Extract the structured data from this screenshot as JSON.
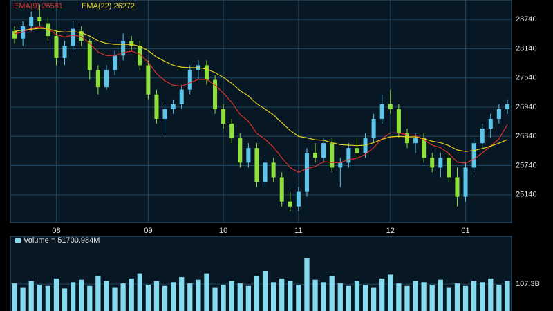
{
  "chart_data": [
    {
      "type": "candlestick",
      "color_up": "#5cc6ea",
      "color_down": "#8fe03c",
      "ylim": [
        24570,
        29140
      ],
      "yticks": [
        25140,
        25740,
        26340,
        26940,
        27540,
        28140,
        28740
      ],
      "xlim": [
        -0.5,
        59.5
      ],
      "xticks": [
        {
          "value": 5,
          "label": "08"
        },
        {
          "value": 16,
          "label": "09"
        },
        {
          "value": 25,
          "label": "10"
        },
        {
          "value": 34,
          "label": "11"
        },
        {
          "value": 45,
          "label": "12"
        },
        {
          "value": 54,
          "label": "01"
        }
      ],
      "grid": true,
      "candles": [
        [
          28500,
          28600,
          28250,
          28350
        ],
        [
          28350,
          28700,
          28200,
          28600
        ],
        [
          28600,
          28900,
          28500,
          28800
        ],
        [
          28800,
          29050,
          28600,
          28700
        ],
        [
          28650,
          28800,
          28300,
          28400
        ],
        [
          28400,
          28500,
          27800,
          27950
        ],
        [
          27950,
          28300,
          27800,
          28200
        ],
        [
          28200,
          28700,
          28100,
          28550
        ],
        [
          28500,
          28600,
          28200,
          28300
        ],
        [
          28300,
          28350,
          27500,
          27700
        ],
        [
          27700,
          27800,
          27200,
          27350
        ],
        [
          27350,
          27800,
          27300,
          27700
        ],
        [
          27700,
          28100,
          27600,
          28000
        ],
        [
          28000,
          28450,
          27900,
          28300
        ],
        [
          28300,
          28400,
          28100,
          28200
        ],
        [
          28200,
          28300,
          27700,
          27800
        ],
        [
          27800,
          27900,
          27100,
          27200
        ],
        [
          27200,
          27300,
          26600,
          26700
        ],
        [
          26700,
          27000,
          26400,
          26900
        ],
        [
          26900,
          27100,
          26800,
          27000
        ],
        [
          27000,
          27400,
          26900,
          27300
        ],
        [
          27300,
          27800,
          27200,
          27700
        ],
        [
          27700,
          27900,
          27500,
          27800
        ],
        [
          27800,
          27900,
          27400,
          27500
        ],
        [
          27500,
          27600,
          26800,
          26900
        ],
        [
          26900,
          27000,
          26500,
          26600
        ],
        [
          26600,
          26700,
          26200,
          26300
        ],
        [
          26300,
          26400,
          25700,
          25800
        ],
        [
          25800,
          26200,
          25700,
          26100
        ],
        [
          26100,
          26200,
          25300,
          25400
        ],
        [
          25400,
          25900,
          25300,
          25800
        ],
        [
          25800,
          25900,
          25400,
          25500
        ],
        [
          25500,
          25600,
          24900,
          25000
        ],
        [
          25000,
          25200,
          24800,
          24900
        ],
        [
          24900,
          25300,
          24800,
          25200
        ],
        [
          25200,
          26100,
          25100,
          26000
        ],
        [
          26000,
          26200,
          25800,
          25900
        ],
        [
          25900,
          26300,
          25800,
          26200
        ],
        [
          26200,
          26300,
          25600,
          25700
        ],
        [
          25700,
          25900,
          25300,
          25800
        ],
        [
          25800,
          26200,
          25700,
          26100
        ],
        [
          26100,
          26300,
          25900,
          26000
        ],
        [
          26000,
          26400,
          25900,
          26300
        ],
        [
          26300,
          26800,
          26200,
          26700
        ],
        [
          26700,
          27200,
          26600,
          27000
        ],
        [
          27000,
          27300,
          26800,
          26900
        ],
        [
          26900,
          27000,
          26300,
          26400
        ],
        [
          26400,
          26500,
          26100,
          26200
        ],
        [
          26200,
          26400,
          26000,
          26300
        ],
        [
          26300,
          26400,
          25800,
          25900
        ],
        [
          25900,
          26000,
          25600,
          25700
        ],
        [
          25700,
          26000,
          25500,
          25900
        ],
        [
          25900,
          26000,
          25400,
          25500
        ],
        [
          25500,
          25700,
          24900,
          25100
        ],
        [
          25100,
          25800,
          25000,
          25700
        ],
        [
          25700,
          26300,
          25600,
          26200
        ],
        [
          26200,
          26600,
          26100,
          26500
        ],
        [
          26500,
          26800,
          26300,
          26700
        ],
        [
          26700,
          27000,
          26600,
          26900
        ],
        [
          26900,
          27100,
          26800,
          27000
        ]
      ],
      "lines": [
        {
          "name": "EMA(9) 26581",
          "color": "#e0302a",
          "values": [
            28450,
            28480,
            28560,
            28590,
            28550,
            28430,
            28380,
            28420,
            28390,
            28250,
            28070,
            28000,
            28000,
            28060,
            28090,
            28030,
            27860,
            27630,
            27480,
            27390,
            27370,
            27440,
            27510,
            27510,
            27390,
            27230,
            27040,
            26790,
            26650,
            26400,
            26280,
            26120,
            25900,
            25700,
            25600,
            25680,
            25720,
            25820,
            25800,
            25800,
            25860,
            25890,
            25970,
            26110,
            26290,
            26410,
            26410,
            26370,
            26360,
            26270,
            26160,
            26110,
            25990,
            25810,
            25790,
            25870,
            26000,
            26140,
            26290,
            26581
          ]
        },
        {
          "name": "EMA(22) 26272",
          "color": "#e8d020",
          "values": [
            28500,
            28520,
            28540,
            28560,
            28550,
            28500,
            28480,
            28490,
            28470,
            28400,
            28300,
            28250,
            28230,
            28230,
            28230,
            28190,
            28100,
            27970,
            27880,
            27800,
            27760,
            27750,
            27750,
            27720,
            27650,
            27550,
            27430,
            27280,
            27170,
            27010,
            26900,
            26780,
            26620,
            26460,
            26340,
            26310,
            26270,
            26260,
            26210,
            26170,
            26160,
            26150,
            26160,
            26210,
            26280,
            26330,
            26340,
            26330,
            26330,
            26290,
            26240,
            26210,
            26150,
            26060,
            26030,
            26050,
            26090,
            26140,
            26200,
            26272
          ]
        }
      ]
    },
    {
      "type": "bar",
      "legend": "Volume = 51700.984M",
      "color": "#86dbef",
      "ylim": [
        0,
        298
      ],
      "yticks": [
        {
          "value": 107.3,
          "label": "107.3B"
        }
      ],
      "grid": true,
      "values": [
        110,
        95,
        120,
        105,
        100,
        130,
        90,
        115,
        125,
        100,
        140,
        120,
        95,
        110,
        130,
        150,
        105,
        120,
        100,
        115,
        135,
        110,
        125,
        150,
        95,
        105,
        120,
        110,
        100,
        140,
        160,
        115,
        130,
        120,
        105,
        210,
        125,
        115,
        140,
        110,
        100,
        120,
        105,
        95,
        130,
        145,
        110,
        100,
        120,
        115,
        105,
        125,
        95,
        110,
        100,
        120,
        115,
        130,
        105,
        120
      ]
    }
  ]
}
